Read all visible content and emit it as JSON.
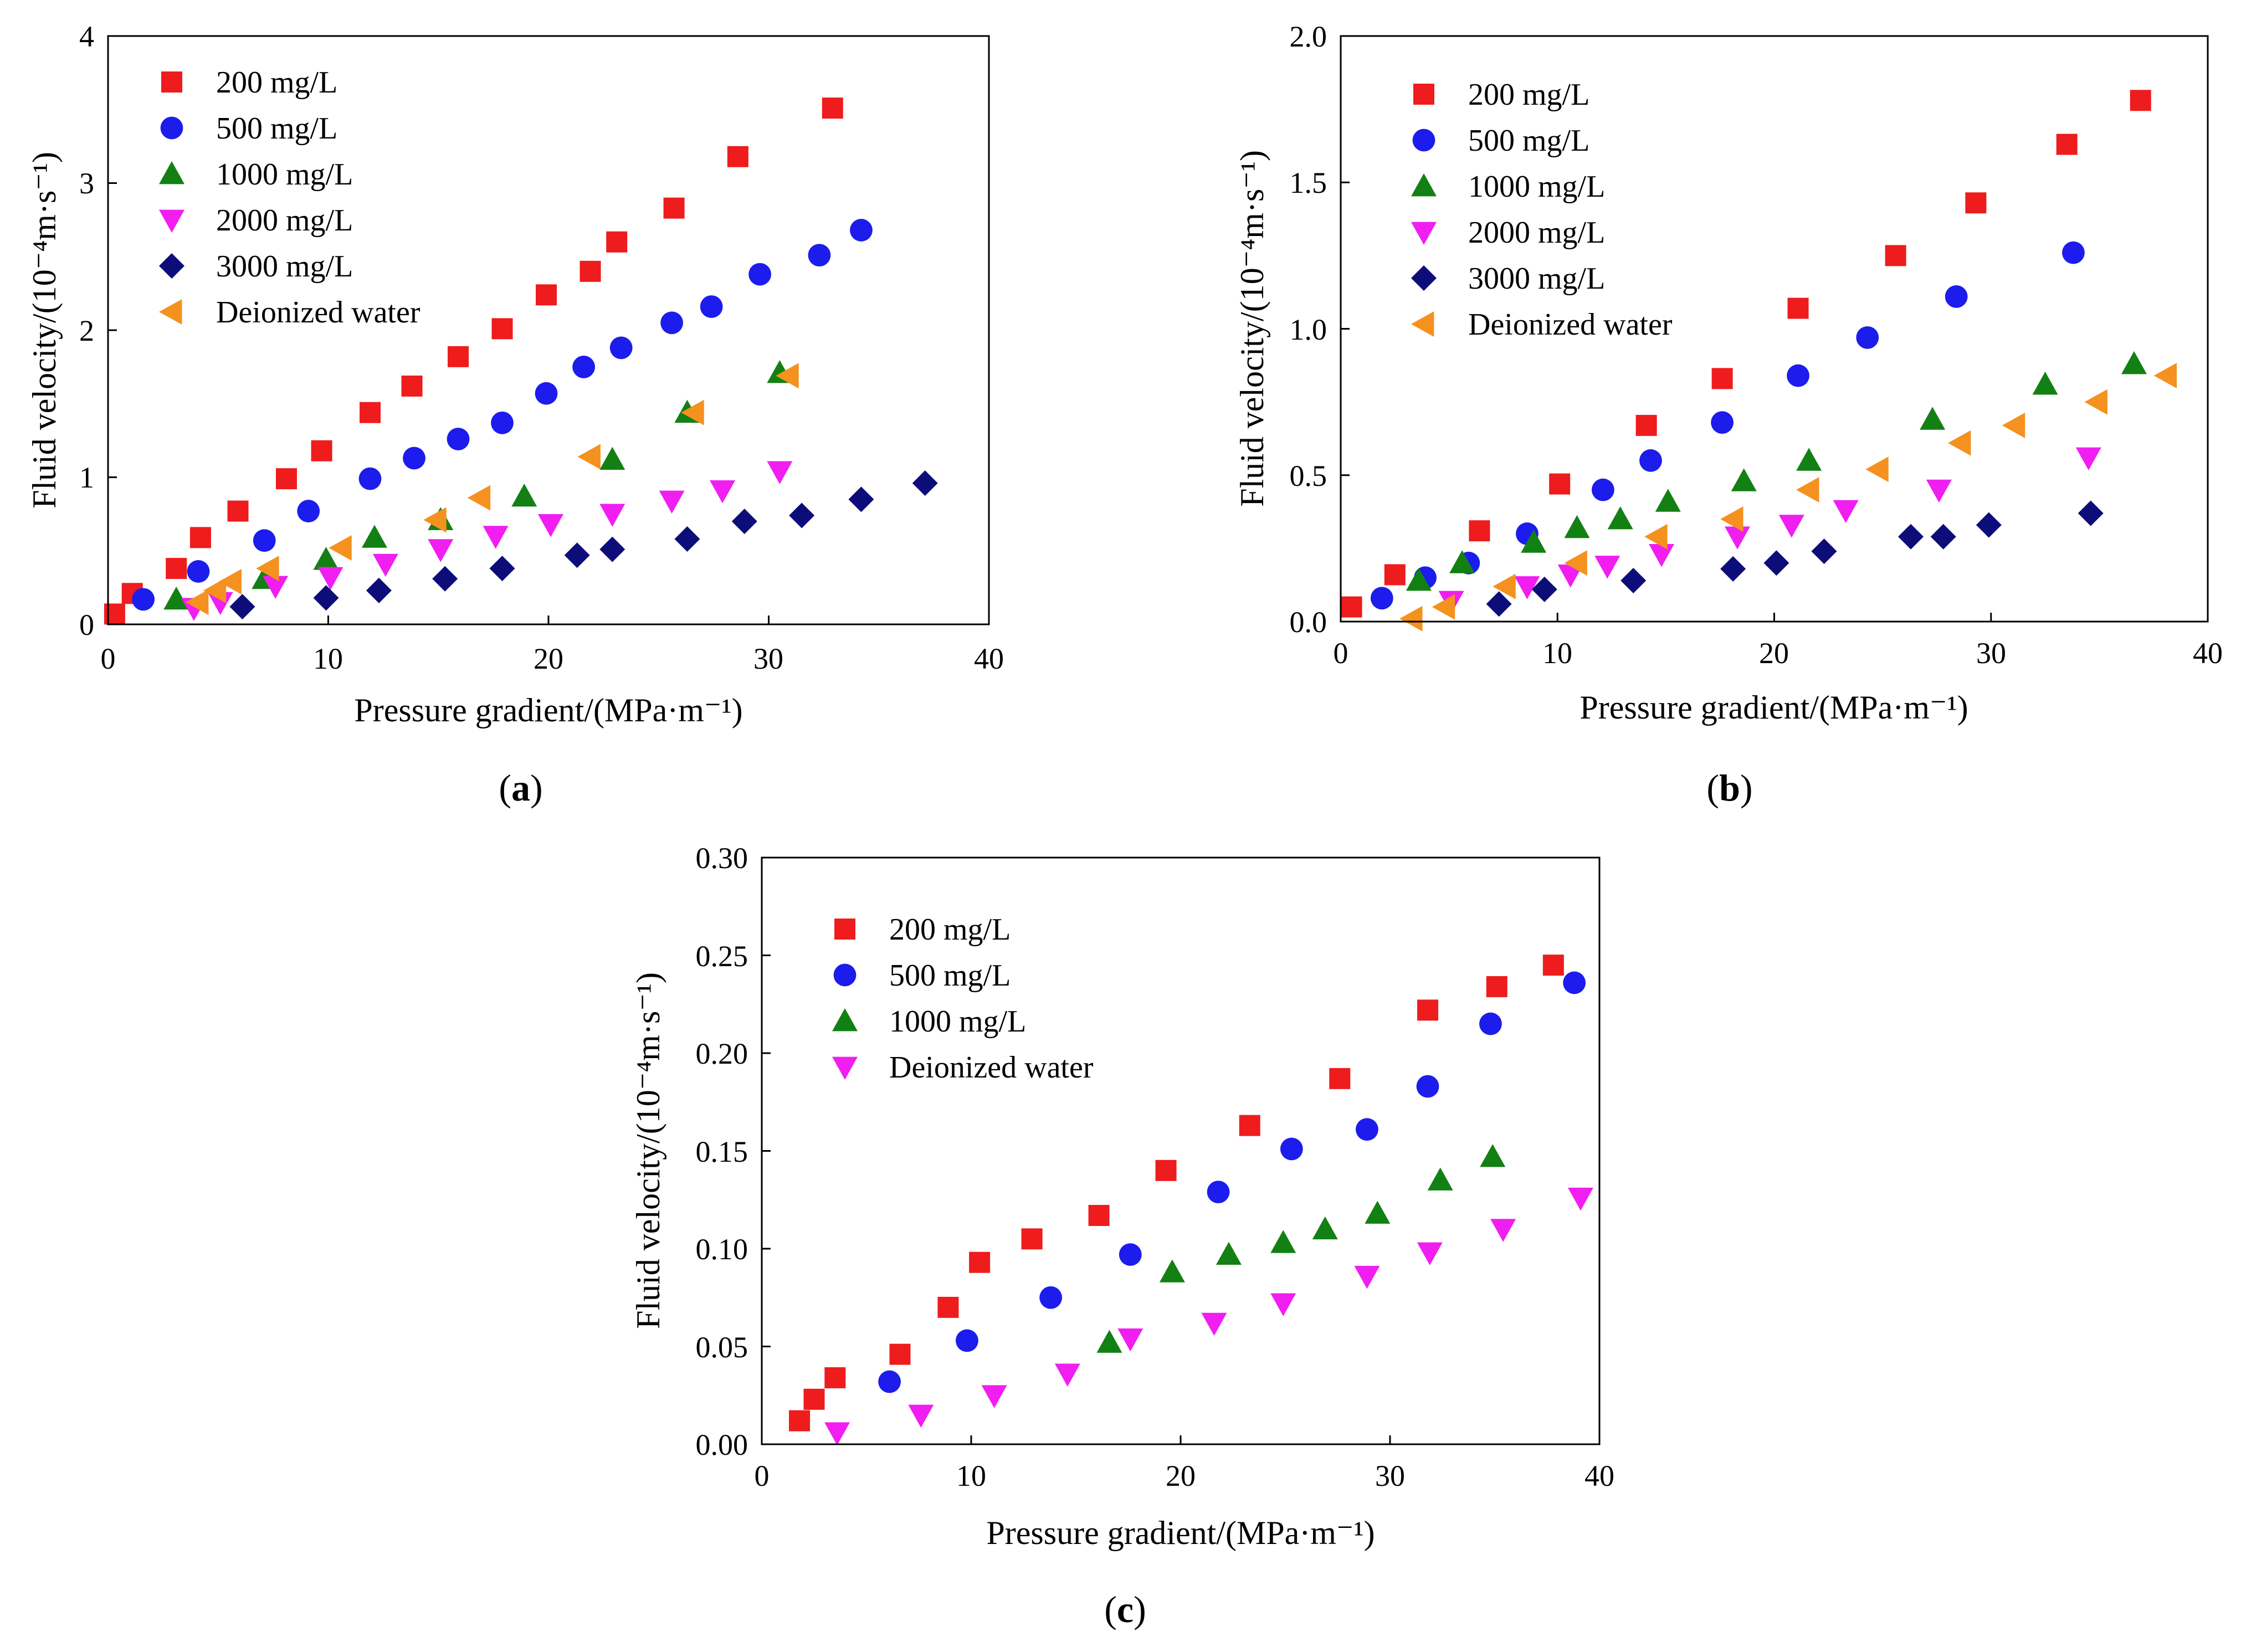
{
  "colors": {
    "red": "#ee1c1c",
    "blue": "#1c1ced",
    "green": "#138013",
    "magenta": "#f01ef0",
    "navy": "#0d0d7a",
    "orange": "#f5911e"
  },
  "chart_data": [
    {
      "type": "scatter",
      "panel": "a",
      "panel_label": "a",
      "xlabel": "Pressure gradient/(MPa·m⁻¹)",
      "ylabel": "Fluid velocity/(10⁻⁴m·s⁻¹)",
      "xlim": [
        0,
        40
      ],
      "ylim": [
        0,
        4
      ],
      "xticks": [
        "0",
        "10",
        "20",
        "30",
        "40"
      ],
      "yticks": [
        "0",
        "1",
        "2",
        "3",
        "4"
      ],
      "legend_position": "top-left",
      "series": [
        {
          "name": "200 mg/L",
          "marker": "square",
          "color": "#ee1c1c",
          "x": [
            0.3,
            1.1,
            3.1,
            4.2,
            5.9,
            8.1,
            9.7,
            11.9,
            13.8,
            15.9,
            17.9,
            19.9,
            21.9,
            23.1,
            25.7,
            28.6,
            32.9
          ],
          "y": [
            0.07,
            0.21,
            0.38,
            0.59,
            0.77,
            0.99,
            1.18,
            1.44,
            1.62,
            1.82,
            2.01,
            2.24,
            2.4,
            2.6,
            2.83,
            3.18,
            3.51
          ]
        },
        {
          "name": "500 mg/L",
          "marker": "circle",
          "color": "#1c1ced",
          "x": [
            1.6,
            4.1,
            7.1,
            9.1,
            11.9,
            13.9,
            15.9,
            17.9,
            19.9,
            21.6,
            23.3,
            25.6,
            27.4,
            29.6,
            32.3,
            34.2
          ],
          "y": [
            0.17,
            0.36,
            0.57,
            0.77,
            0.99,
            1.13,
            1.26,
            1.37,
            1.57,
            1.75,
            1.88,
            2.05,
            2.16,
            2.38,
            2.51,
            2.68
          ]
        },
        {
          "name": "1000 mg/L",
          "marker": "triangle-up",
          "color": "#138013",
          "x": [
            3.1,
            7.1,
            9.9,
            12.1,
            15.1,
            18.9,
            22.9,
            26.3,
            30.5
          ],
          "y": [
            0.17,
            0.31,
            0.44,
            0.59,
            0.71,
            0.87,
            1.12,
            1.44,
            1.71
          ]
        },
        {
          "name": "2000 mg/L",
          "marker": "triangle-down",
          "color": "#f01ef0",
          "x": [
            3.9,
            5.1,
            7.6,
            10.1,
            12.6,
            15.1,
            17.6,
            20.1,
            22.9,
            25.6,
            27.9,
            30.5
          ],
          "y": [
            0.11,
            0.15,
            0.26,
            0.32,
            0.41,
            0.51,
            0.6,
            0.68,
            0.75,
            0.84,
            0.91,
            1.04
          ]
        },
        {
          "name": "3000 mg/L",
          "marker": "diamond",
          "color": "#0d0d7a",
          "x": [
            6.1,
            9.9,
            12.3,
            15.3,
            17.9,
            21.3,
            22.9,
            26.3,
            28.9,
            31.5,
            34.2,
            37.1
          ],
          "y": [
            0.12,
            0.18,
            0.23,
            0.31,
            0.38,
            0.47,
            0.51,
            0.58,
            0.7,
            0.74,
            0.85,
            0.96
          ]
        },
        {
          "name": "Deionized water",
          "marker": "triangle-left",
          "color": "#f5911e",
          "x": [
            4.1,
            4.9,
            5.6,
            7.3,
            10.6,
            14.9,
            16.9,
            21.9,
            26.6,
            30.9
          ],
          "y": [
            0.15,
            0.23,
            0.29,
            0.38,
            0.52,
            0.71,
            0.86,
            1.14,
            1.44,
            1.69
          ]
        }
      ]
    },
    {
      "type": "scatter",
      "panel": "b",
      "panel_label": "b",
      "xlabel": "Pressure gradient/(MPa·m⁻¹)",
      "ylabel": "Fluid velocity/(10⁻⁴m·s⁻¹)",
      "xlim": [
        0,
        40
      ],
      "ylim": [
        0,
        2.0
      ],
      "xticks": [
        "0",
        "10",
        "20",
        "30",
        "40"
      ],
      "yticks": [
        "0.0",
        "0.5",
        "1.0",
        "1.5",
        "2.0"
      ],
      "legend_position": "top-left",
      "series": [
        {
          "name": "200 mg/L",
          "marker": "square",
          "color": "#ee1c1c",
          "x": [
            0.5,
            2.5,
            6.4,
            10.1,
            14.1,
            17.6,
            21.1,
            25.6,
            29.3,
            33.5,
            36.9
          ],
          "y": [
            0.05,
            0.16,
            0.31,
            0.47,
            0.67,
            0.83,
            1.07,
            1.25,
            1.43,
            1.63,
            1.78
          ]
        },
        {
          "name": "500 mg/L",
          "marker": "circle",
          "color": "#1c1ced",
          "x": [
            1.9,
            3.9,
            5.9,
            8.6,
            12.1,
            14.3,
            17.6,
            21.1,
            24.3,
            28.4,
            33.8
          ],
          "y": [
            0.08,
            0.15,
            0.2,
            0.3,
            0.45,
            0.55,
            0.68,
            0.84,
            0.97,
            1.11,
            1.26
          ]
        },
        {
          "name": "1000 mg/L",
          "marker": "triangle-up",
          "color": "#138013",
          "x": [
            3.6,
            5.6,
            8.9,
            10.9,
            12.9,
            15.1,
            18.6,
            21.6,
            27.3,
            32.5,
            36.6
          ],
          "y": [
            0.14,
            0.2,
            0.27,
            0.32,
            0.35,
            0.41,
            0.48,
            0.55,
            0.69,
            0.81,
            0.88
          ]
        },
        {
          "name": "2000 mg/L",
          "marker": "triangle-down",
          "color": "#f01ef0",
          "x": [
            5.1,
            8.6,
            10.6,
            12.3,
            14.8,
            18.3,
            20.8,
            23.3,
            27.6,
            34.5
          ],
          "y": [
            0.07,
            0.12,
            0.16,
            0.19,
            0.23,
            0.29,
            0.33,
            0.38,
            0.45,
            0.56
          ]
        },
        {
          "name": "3000 mg/L",
          "marker": "diamond",
          "color": "#0d0d7a",
          "x": [
            7.3,
            9.4,
            13.5,
            18.1,
            20.1,
            22.3,
            26.3,
            27.8,
            29.9,
            34.6
          ],
          "y": [
            0.06,
            0.11,
            0.14,
            0.18,
            0.2,
            0.24,
            0.29,
            0.29,
            0.33,
            0.37
          ]
        },
        {
          "name": "Deionized water",
          "marker": "triangle-left",
          "color": "#f5911e",
          "x": [
            3.3,
            4.8,
            7.6,
            10.9,
            14.6,
            18.1,
            21.6,
            24.8,
            28.6,
            31.1,
            34.9,
            38.1
          ],
          "y": [
            0.01,
            0.05,
            0.12,
            0.2,
            0.29,
            0.35,
            0.45,
            0.52,
            0.61,
            0.67,
            0.75,
            0.84
          ]
        }
      ]
    },
    {
      "type": "scatter",
      "panel": "c",
      "panel_label": "c",
      "xlabel": "Pressure gradient/(MPa·m⁻¹)",
      "ylabel": "Fluid velocity/(10⁻⁴m·s⁻¹)",
      "xlim": [
        0,
        40
      ],
      "ylim": [
        0,
        0.3
      ],
      "xticks": [
        "0",
        "10",
        "20",
        "30",
        "40"
      ],
      "yticks": [
        "0.00",
        "0.05",
        "0.10",
        "0.15",
        "0.20",
        "0.25",
        "0.30"
      ],
      "legend_position": "top-left",
      "series": [
        {
          "name": "200 mg/L",
          "marker": "square",
          "color": "#ee1c1c",
          "x": [
            1.8,
            2.5,
            3.5,
            6.6,
            8.9,
            10.4,
            12.9,
            16.1,
            19.3,
            23.3,
            27.6,
            31.8,
            35.1,
            37.8
          ],
          "y": [
            0.012,
            0.023,
            0.034,
            0.046,
            0.07,
            0.093,
            0.105,
            0.117,
            0.14,
            0.163,
            0.187,
            0.222,
            0.234,
            0.245
          ]
        },
        {
          "name": "500 mg/L",
          "marker": "circle",
          "color": "#1c1ced",
          "x": [
            6.1,
            9.8,
            13.8,
            17.6,
            21.8,
            25.3,
            28.9,
            31.8,
            34.8,
            38.8
          ],
          "y": [
            0.032,
            0.053,
            0.075,
            0.097,
            0.129,
            0.151,
            0.161,
            0.183,
            0.215,
            0.236
          ]
        },
        {
          "name": "1000 mg/L",
          "marker": "triangle-up",
          "color": "#138013",
          "x": [
            16.6,
            19.6,
            22.3,
            24.9,
            26.9,
            29.4,
            32.4,
            34.9
          ],
          "y": [
            0.052,
            0.088,
            0.097,
            0.103,
            0.11,
            0.118,
            0.135,
            0.147
          ]
        },
        {
          "name": "Deionized water",
          "marker": "triangle-down",
          "color": "#f01ef0",
          "x": [
            3.6,
            7.6,
            11.1,
            14.6,
            17.6,
            21.6,
            24.9,
            28.9,
            31.9,
            35.4,
            39.1
          ],
          "y": [
            0.006,
            0.015,
            0.025,
            0.036,
            0.054,
            0.062,
            0.072,
            0.086,
            0.098,
            0.11,
            0.126
          ]
        }
      ]
    }
  ]
}
